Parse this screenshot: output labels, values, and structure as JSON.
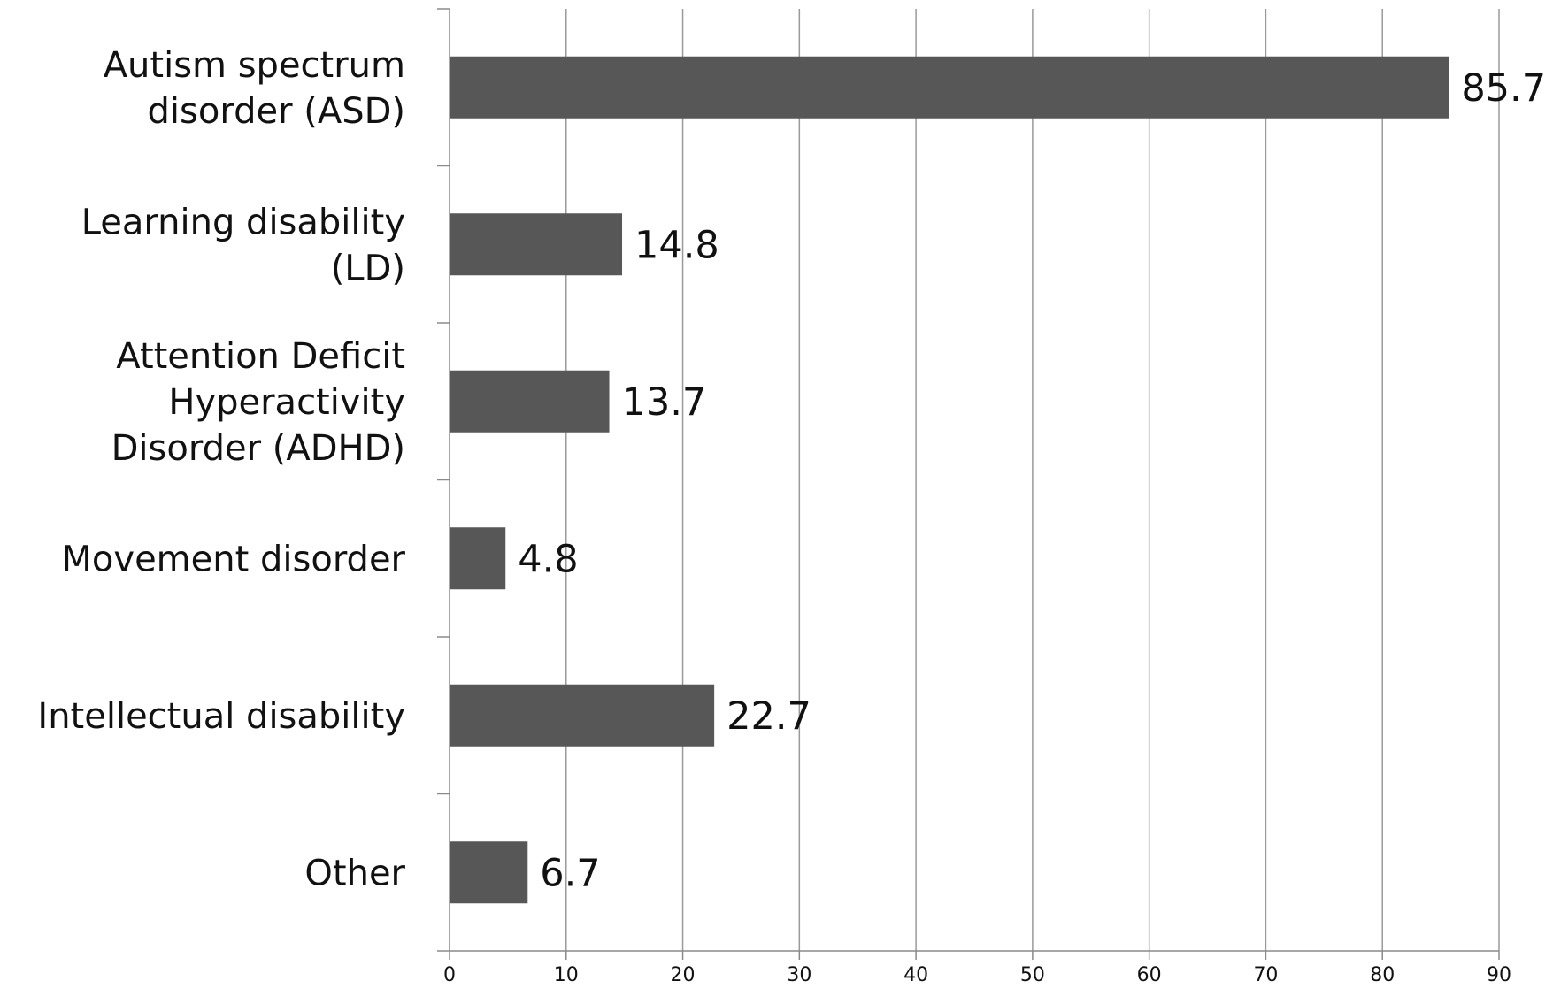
{
  "chart_data": {
    "type": "bar",
    "orientation": "horizontal",
    "categories": [
      [
        "Autism spectrum",
        "disorder (ASD)"
      ],
      [
        "Learning disability",
        "(LD)"
      ],
      [
        "Attention Deficit",
        "Hyperactivity",
        "Disorder (ADHD)"
      ],
      [
        "Movement disorder"
      ],
      [
        "Intellectual disability"
      ],
      [
        "Other"
      ]
    ],
    "values": [
      85.7,
      14.8,
      13.7,
      4.8,
      22.7,
      6.7
    ],
    "value_labels": [
      "85.7",
      "14.8",
      "13.7",
      "4.8",
      "22.7",
      "6.7"
    ],
    "xlim": [
      0,
      90
    ],
    "xticks": [
      0,
      10,
      20,
      30,
      40,
      50,
      60,
      70,
      80,
      90
    ],
    "xtick_labels": [
      "0",
      "10",
      "20",
      "30",
      "40",
      "50",
      "60",
      "70",
      "80",
      "90"
    ],
    "title": "",
    "xlabel": "",
    "ylabel": "",
    "grid": "vertical",
    "legend": "none",
    "bar_color": "#575757"
  }
}
